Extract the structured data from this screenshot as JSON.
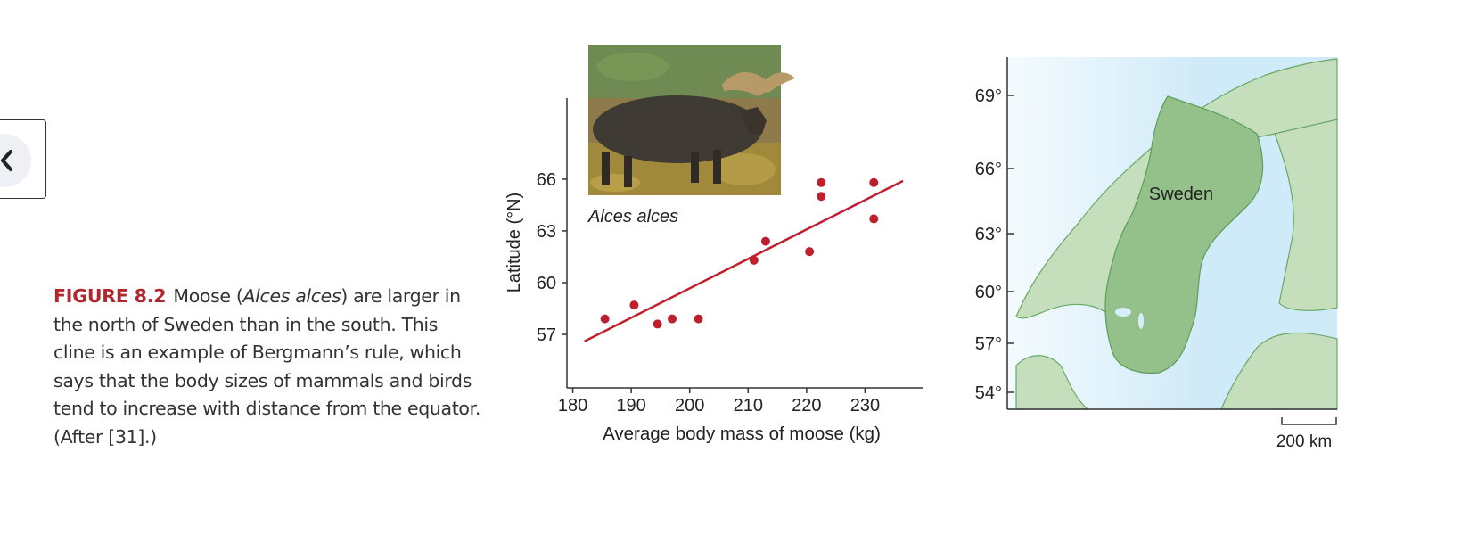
{
  "nav": {
    "back_icon": "chevron-left-icon"
  },
  "caption": {
    "label": "FIGURE 8.2",
    "text_1": "Moose (",
    "species": "Alces alces",
    "text_2": ") are larger in the north of Sweden than in the south. This cline is an example of Bergmann’s rule, which says that the body sizes of mammals and birds tend to increase with distance from the equator. (After [31].)"
  },
  "photo": {
    "caption": "Alces alces"
  },
  "chart_data": {
    "type": "scatter",
    "xlabel": "Average body mass of moose (kg)",
    "ylabel": "Latitude (°N)",
    "x_ticks": [
      180,
      190,
      200,
      210,
      220,
      230
    ],
    "y_ticks": [
      57,
      60,
      63,
      66
    ],
    "xlim": [
      179,
      240
    ],
    "ylim": [
      53.9,
      70.7
    ],
    "points": [
      {
        "x": 185.5,
        "y": 57.9
      },
      {
        "x": 190.5,
        "y": 58.7
      },
      {
        "x": 194.5,
        "y": 57.6
      },
      {
        "x": 197,
        "y": 57.9
      },
      {
        "x": 201.5,
        "y": 57.9
      },
      {
        "x": 211,
        "y": 61.3
      },
      {
        "x": 213,
        "y": 62.4
      },
      {
        "x": 220.5,
        "y": 61.8
      },
      {
        "x": 222.5,
        "y": 65.0
      },
      {
        "x": 222.5,
        "y": 65.8
      },
      {
        "x": 231.5,
        "y": 65.8
      },
      {
        "x": 231.5,
        "y": 63.7
      }
    ],
    "trendline": {
      "x": [
        182,
        236.5
      ],
      "y": [
        56.6,
        65.9
      ]
    },
    "grid": false,
    "colors": {
      "points": "#c0202e",
      "line": "#c0202e",
      "axis": "#333333"
    }
  },
  "map": {
    "country_label": "Sweden",
    "lat_ticks": [
      "69°",
      "66°",
      "63°",
      "60°",
      "57°",
      "54°"
    ],
    "scale_label": "200 km",
    "colors": {
      "sea": "#d6eefa",
      "land": "#c5dfbc",
      "sweden": "#94c189",
      "coast": "#5a9e5a"
    }
  }
}
